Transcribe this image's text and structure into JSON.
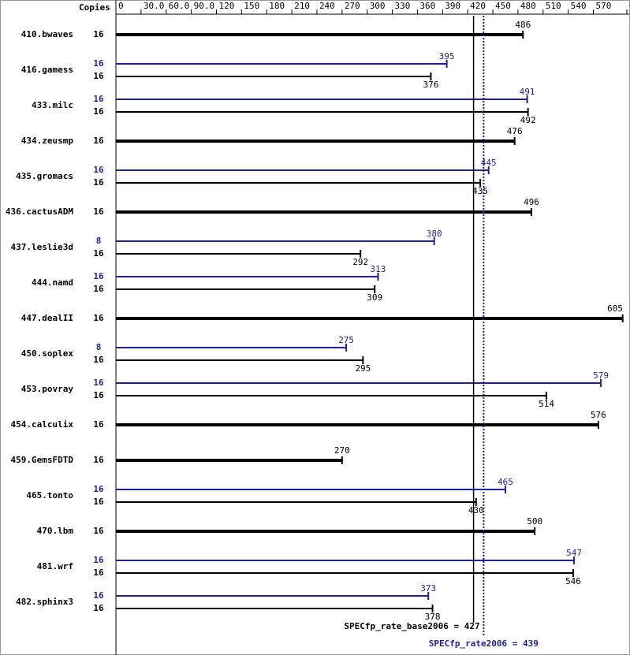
{
  "chart_data": {
    "type": "bar",
    "copies_label": "Copies",
    "categories": [
      "410.bwaves",
      "416.gamess",
      "433.milc",
      "434.zeusmp",
      "435.gromacs",
      "436.cactusADM",
      "437.leslie3d",
      "444.namd",
      "447.dealII",
      "450.soplex",
      "453.povray",
      "454.calculix",
      "459.GemsFDTD",
      "465.tonto",
      "470.lbm",
      "481.wrf",
      "482.sphinx3"
    ],
    "series": [
      {
        "color": "#000000",
        "copies": [
          16,
          16,
          16,
          16,
          16,
          16,
          16,
          16,
          16,
          16,
          16,
          16,
          16,
          16,
          16,
          16,
          16
        ],
        "values": [
          486,
          376,
          492,
          476,
          435,
          496,
          292,
          309,
          605,
          295,
          514,
          576,
          270,
          430,
          500,
          546,
          378
        ]
      },
      {
        "color": "#1f1f99",
        "copies": [
          null,
          16,
          16,
          null,
          16,
          null,
          8,
          16,
          null,
          8,
          16,
          null,
          null,
          16,
          null,
          16,
          16
        ],
        "values": [
          null,
          395,
          491,
          null,
          445,
          null,
          380,
          313,
          null,
          275,
          579,
          null,
          null,
          465,
          null,
          547,
          373
        ]
      }
    ],
    "xlim": [
      0,
      610
    ],
    "xticks": [
      0,
      {
        "value": 30,
        "label": "30.0"
      },
      {
        "value": 60,
        "label": "60.0"
      },
      {
        "value": 90,
        "label": "90.0"
      },
      120,
      150,
      180,
      210,
      240,
      270,
      300,
      330,
      360,
      390,
      420,
      450,
      480,
      510,
      540,
      570,
      610
    ],
    "reference_lines": [
      {
        "label": "SPECfp_rate_base2006 = 427",
        "value": 427,
        "color": "#000000",
        "style": "solid"
      },
      {
        "label": "SPECfp_rate2006 = 439",
        "value": 439,
        "color": "#1f1f99",
        "style": "dotted"
      }
    ]
  }
}
